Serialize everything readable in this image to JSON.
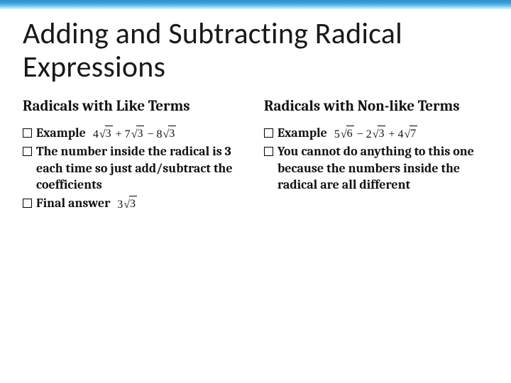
{
  "title": "Adding and Subtracting Radical Expressions",
  "left": {
    "heading": "Radicals with Like Terms",
    "bullets": {
      "b0": {
        "label": "Example",
        "math_html": "4<span class='sqrt'><span class='sqrt-bar'>3</span></span> + 7<span class='sqrt'><span class='sqrt-bar'>3</span></span> − 8<span class='sqrt'><span class='sqrt-bar'>3</span></span>"
      },
      "b1": {
        "label": "The number inside the radical is 3 each time so just add/subtract the coefficients"
      },
      "b2": {
        "label": "Final answer",
        "math_html": "3<span class='sqrt'><span class='sqrt-bar'>3</span></span>"
      }
    }
  },
  "right": {
    "heading": "Radicals with Non-like Terms",
    "bullets": {
      "b0": {
        "label": "Example",
        "math_html": "5<span class='sqrt'><span class='sqrt-bar'>6</span></span> − 2<span class='sqrt'><span class='sqrt-bar'>3</span></span> + 4<span class='sqrt'><span class='sqrt-bar'>7</span></span>"
      },
      "b1": {
        "label": "You cannot do anything to this one because the numbers inside the radical are all different"
      }
    }
  },
  "style": {
    "title_fontsize": 42,
    "heading_fontsize": 21,
    "body_fontsize": 18,
    "math_fontsize": 16,
    "title_color": "#18191a",
    "text_color": "#111111",
    "background": "#ffffff",
    "border_gradient": [
      "#2b8fc9",
      "#3aa0d6",
      "#6bc0e6",
      "#a8dcf0",
      "#d8f0fa",
      "#ffffff"
    ]
  }
}
